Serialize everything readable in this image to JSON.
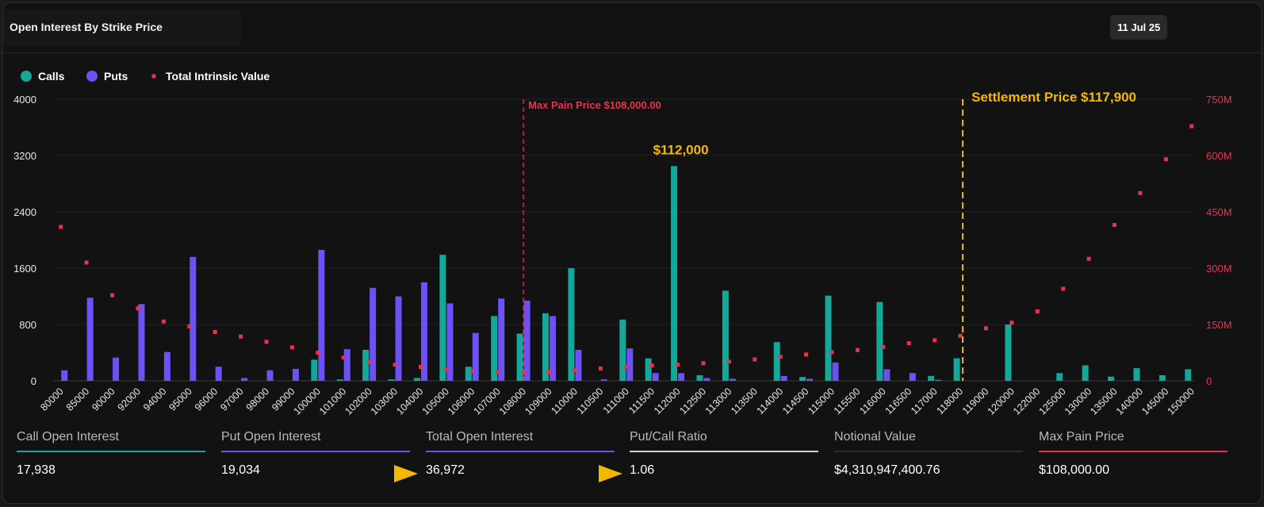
{
  "header": {
    "title": "Open Interest By Strike Price",
    "date_label": "11 Jul 25"
  },
  "colors": {
    "calls": "#14a89b",
    "puts": "#6c52f5",
    "intrinsic": "#e8334f",
    "settlement": "#f5b800",
    "max_pain": "#e8334f"
  },
  "chart_data": {
    "type": "bar",
    "legend": [
      "Calls",
      "Puts",
      "Total Intrinsic Value"
    ],
    "legend_position": "top-left",
    "categories": [
      "80000",
      "85000",
      "90000",
      "92000",
      "94000",
      "95000",
      "96000",
      "97000",
      "98000",
      "99000",
      "100000",
      "101000",
      "102000",
      "103000",
      "104000",
      "105000",
      "106000",
      "107000",
      "108000",
      "109000",
      "110000",
      "110500",
      "111000",
      "111500",
      "112000",
      "112500",
      "113000",
      "113500",
      "114000",
      "114500",
      "115000",
      "115500",
      "116000",
      "116500",
      "117000",
      "118000",
      "119000",
      "120000",
      "122000",
      "125000",
      "130000",
      "135000",
      "140000",
      "145000",
      "150000"
    ],
    "series": [
      {
        "name": "Calls",
        "axis": "left",
        "values": [
          0,
          0,
          0,
          0,
          0,
          0,
          0,
          0,
          0,
          0,
          300,
          20,
          440,
          20,
          40,
          1790,
          200,
          920,
          670,
          960,
          1600,
          0,
          870,
          320,
          3050,
          80,
          1280,
          0,
          550,
          55,
          1210,
          0,
          1120,
          0,
          70,
          320,
          0,
          800,
          0,
          110,
          220,
          60,
          180,
          80,
          165
        ]
      },
      {
        "name": "Puts",
        "axis": "left",
        "values": [
          150,
          1180,
          330,
          1090,
          410,
          1760,
          200,
          40,
          150,
          170,
          1860,
          450,
          1320,
          1200,
          1400,
          1100,
          680,
          1170,
          1140,
          920,
          440,
          20,
          460,
          110,
          110,
          40,
          30,
          0,
          70,
          30,
          260,
          0,
          165,
          110,
          15,
          0,
          0,
          0,
          0,
          0,
          0,
          0,
          0,
          0,
          0
        ]
      },
      {
        "name": "Total Intrinsic Value",
        "axis": "right",
        "type": "scatter",
        "unit": "M",
        "values": [
          410,
          315,
          228,
          193,
          158,
          145,
          130,
          118,
          104,
          89,
          75,
          62,
          50,
          43,
          37,
          30,
          26,
          24,
          22,
          24,
          28,
          33,
          37,
          41,
          43,
          47,
          51,
          57,
          64,
          70,
          76,
          82,
          90,
          100,
          108,
          120,
          140,
          155,
          185,
          245,
          325,
          415,
          500,
          590,
          678
        ]
      }
    ],
    "y_left": {
      "ticks": [
        "0",
        "800",
        "1600",
        "2400",
        "3200",
        "4000"
      ],
      "range": [
        0,
        4000
      ]
    },
    "y_right": {
      "ticks": [
        "0",
        "150M",
        "300M",
        "450M",
        "600M",
        "750M"
      ],
      "range": [
        0,
        750
      ]
    },
    "annotations": {
      "max_pain": {
        "label": "Max Pain Price $108,000.00",
        "category": "108000"
      },
      "settlement": {
        "label": "Settlement Price $117,900",
        "category": "118000"
      },
      "peak": {
        "label": "$112,000",
        "category": "112000"
      }
    },
    "grid": true
  },
  "stats": [
    {
      "label": "Call Open Interest",
      "value": "17,938",
      "color": "#14a89b"
    },
    {
      "label": "Put Open Interest",
      "value": "19,034",
      "color": "#6c52f5"
    },
    {
      "label": "Total Open Interest",
      "value": "36,972",
      "color": "#6c52f5"
    },
    {
      "label": "Put/Call Ratio",
      "value": "1.06",
      "color": "#cfcfcf"
    },
    {
      "label": "Notional Value",
      "value": "$4,310,947,400.76",
      "color": "#2c2c2c"
    },
    {
      "label": "Max Pain Price",
      "value": "$108,000.00",
      "color": "#e8334f"
    }
  ]
}
